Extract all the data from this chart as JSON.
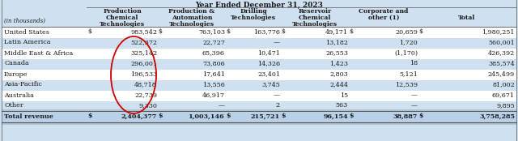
{
  "title": "Year Ended December 31, 2023",
  "col_headers_line1": [
    "Production",
    "Production &",
    "Drilling",
    "Reservoir",
    "Corporate and",
    ""
  ],
  "col_headers_line2": [
    "Chemical",
    "Automation",
    "Technologies",
    "Chemical",
    "other (1)",
    "Total"
  ],
  "col_headers_line3": [
    "Technologies",
    "Technologies",
    "",
    "Technologies",
    "",
    ""
  ],
  "subtitle": "(in thousands)",
  "rows": [
    [
      "United States",
      "$",
      "983,542",
      "$",
      "763,103",
      "$",
      "163,776",
      "$",
      "49,171",
      "$",
      "20,659",
      "$",
      "1,980,251"
    ],
    [
      "Latin America",
      "",
      "522,372",
      "",
      "22,727",
      "",
      "—",
      "",
      "13,182",
      "",
      "1,720",
      "",
      "560,001"
    ],
    [
      "Middle East & Africa",
      "",
      "325,142",
      "",
      "65,396",
      "",
      "10,471",
      "",
      "26,553",
      "",
      "(1,170)",
      "",
      "426,392"
    ],
    [
      "Canada",
      "",
      "296,001",
      "",
      "73,806",
      "",
      "14,326",
      "",
      "1,423",
      "",
      "18",
      "",
      "385,574"
    ],
    [
      "Europe",
      "",
      "196,533",
      "",
      "17,641",
      "",
      "23,401",
      "",
      "2,803",
      "",
      "5,121",
      "",
      "245,499"
    ],
    [
      "Asia-Pacific",
      "",
      "48,718",
      "",
      "13,556",
      "",
      "3,745",
      "",
      "2,444",
      "",
      "12,539",
      "",
      "81,002"
    ],
    [
      "Australia",
      "",
      "22,739",
      "",
      "46,917",
      "",
      "—",
      "",
      "15",
      "",
      "—",
      "",
      "69,671"
    ],
    [
      "Other",
      "",
      "9,330",
      "",
      "—",
      "",
      "2",
      "",
      "563",
      "",
      "—",
      "",
      "9,895"
    ]
  ],
  "total_row": [
    "Total revenue",
    "$",
    "2,404,377",
    "$",
    "1,003,146",
    "$",
    "215,721",
    "$",
    "96,154",
    "$",
    "38,887",
    "$",
    "3,758,285"
  ],
  "bg_light": "#cfe0f0",
  "bg_white": "#ffffff",
  "bg_header": "#cfe0f0",
  "bg_total": "#b8d0e8",
  "text_color": "#1a1a1a",
  "line_color": "#555555",
  "red_circle_color": "#cc0000",
  "fig_bg": "#cfe0f0"
}
